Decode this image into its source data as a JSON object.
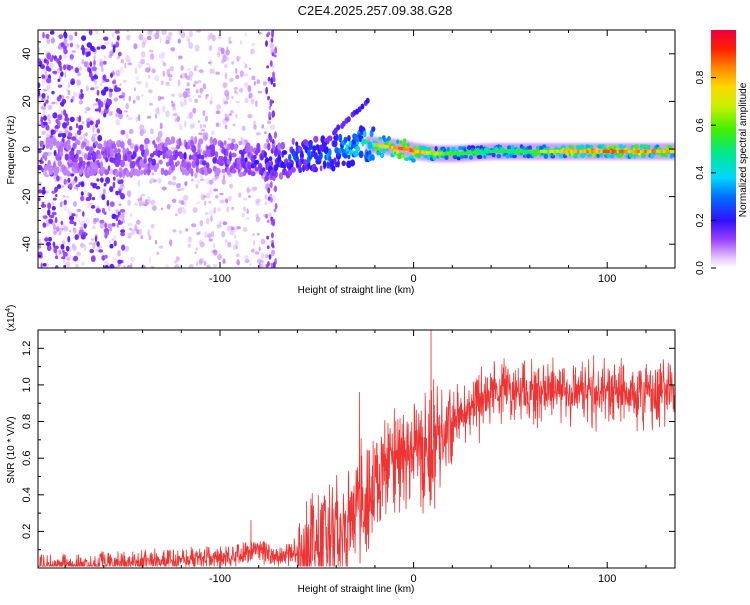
{
  "title": "C2E4.2025.257.09.38.G28",
  "chart_data": [
    {
      "type": "heatmap",
      "name": "spectrogram",
      "xlabel": "Height of straight line (km)",
      "ylabel": "Frequency (Hz)",
      "xlim": [
        -194,
        135
      ],
      "ylim": [
        -50,
        50
      ],
      "xticks": [
        -100,
        0,
        100
      ],
      "yticks": [
        -40,
        -20,
        0,
        20,
        40
      ],
      "colorbar": {
        "label": "Normalized spectral amplitude",
        "range": [
          0,
          1
        ],
        "ticks": [
          0.0,
          0.2,
          0.4,
          0.6,
          0.8
        ]
      },
      "ridge": {
        "x": [
          -190,
          -170,
          -150,
          -130,
          -110,
          -90,
          -75,
          -60,
          -45,
          -35,
          -25,
          -15,
          -5,
          0,
          10,
          20,
          40,
          60,
          80,
          100,
          120,
          135
        ],
        "y": [
          -3,
          -4,
          -4,
          -3,
          -3,
          -4,
          -6,
          -3,
          -2,
          0,
          2,
          1,
          0,
          -1,
          -2,
          -2,
          -1,
          -1,
          -1,
          -1,
          -1,
          -1
        ],
        "amplitude": [
          0.12,
          0.15,
          0.16,
          0.17,
          0.17,
          0.18,
          0.22,
          0.28,
          0.35,
          0.4,
          0.5,
          0.8,
          0.95,
          0.9,
          0.7,
          0.6,
          0.55,
          0.6,
          0.85,
          0.9,
          0.88,
          0.85
        ]
      }
    },
    {
      "type": "line",
      "name": "snr",
      "xlabel": "Height of straight line (km)",
      "ylabel": "SNR (10 * V/V)",
      "y_scale_label": "(x10",
      "y_scale_exponent": "4",
      "y_scale_suffix": ")",
      "xlim": [
        -194,
        135
      ],
      "ylim": [
        0,
        1.3
      ],
      "xticks": [
        -100,
        0,
        100
      ],
      "yticks": [
        0.2,
        0.4,
        0.6,
        0.8,
        1.0,
        1.2
      ],
      "color": "#ee3333",
      "envelope": {
        "x": [
          -194,
          -170,
          -150,
          -130,
          -110,
          -90,
          -80,
          -70,
          -60,
          -50,
          -40,
          -30,
          -20,
          -10,
          0,
          10,
          20,
          30,
          40,
          50,
          60,
          80,
          100,
          120,
          135
        ],
        "y": [
          0.03,
          0.04,
          0.05,
          0.06,
          0.07,
          0.09,
          0.12,
          0.08,
          0.12,
          0.2,
          0.3,
          0.45,
          0.58,
          0.68,
          0.74,
          0.78,
          0.86,
          0.95,
          1.0,
          1.02,
          1.02,
          1.03,
          1.02,
          1.02,
          1.02
        ]
      },
      "peaks": [
        {
          "x": -84,
          "y": 0.26
        },
        {
          "x": -28,
          "y": 0.96
        },
        {
          "x": 9,
          "y": 1.3
        },
        {
          "x": 93,
          "y": 1.16
        }
      ]
    }
  ]
}
